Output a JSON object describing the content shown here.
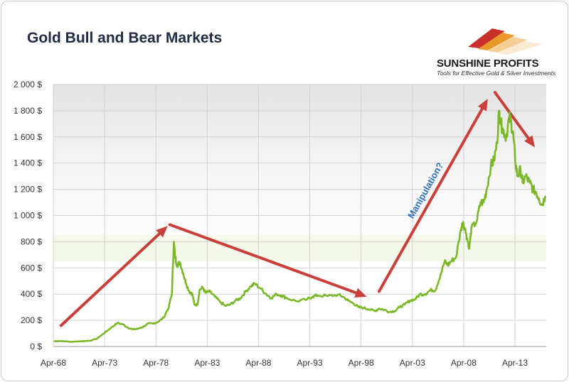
{
  "chart_data": {
    "type": "line",
    "title": "Gold Bull and Bear Markets",
    "xlabel": "",
    "ylabel": "",
    "x_ticks": [
      "Apr-68",
      "Apr-73",
      "Apr-78",
      "Apr-83",
      "Apr-88",
      "Apr-93",
      "Apr-98",
      "Apr-03",
      "Apr-08",
      "Apr-13"
    ],
    "y_ticks": [
      "0 $",
      "200 $",
      "400 $",
      "600 $",
      "800 $",
      "1 000 $",
      "1 200 $",
      "1 400 $",
      "1 600 $",
      "1 800 $",
      "2 000 $"
    ],
    "ylim": [
      0,
      2000
    ],
    "xlim": [
      1968.25,
      2016.3
    ],
    "grid": true,
    "line_color": "#7ab828",
    "series": [
      {
        "x": [
          1968.3,
          1969.0,
          1970.0,
          1971.0,
          1971.8,
          1972.5,
          1973.0,
          1973.5,
          1974.0,
          1974.5,
          1975.0,
          1975.5,
          1976.0,
          1976.7,
          1977.0,
          1977.5,
          1978.0,
          1978.5,
          1979.0,
          1979.5,
          1979.8,
          1980.0,
          1980.1,
          1980.3,
          1980.6,
          1980.9,
          1981.2,
          1981.5,
          1981.8,
          1982.0,
          1982.3,
          1982.5,
          1982.8,
          1983.1,
          1983.5,
          1984.0,
          1984.5,
          1985.0,
          1985.5,
          1986.0,
          1986.5,
          1987.0,
          1987.5,
          1987.9,
          1988.5,
          1989.0,
          1989.5,
          1990.0,
          1990.5,
          1991.0,
          1992.0,
          1993.0,
          1993.5,
          1994.0,
          1995.0,
          1996.0,
          1996.5,
          1997.0,
          1997.5,
          1998.0,
          1998.5,
          1999.0,
          1999.6,
          2000.0,
          2000.5,
          2001.0,
          2001.5,
          2002.0,
          2002.5,
          2003.0,
          2003.5,
          2004.0,
          2004.5,
          2005.0,
          2005.5,
          2006.0,
          2006.4,
          2006.7,
          2007.0,
          2007.5,
          2008.0,
          2008.2,
          2008.5,
          2008.8,
          2009.0,
          2009.5,
          2009.9,
          2010.2,
          2010.5,
          2010.9,
          2011.2,
          2011.5,
          2011.7,
          2011.9,
          2012.1,
          2012.4,
          2012.7,
          2012.9,
          2013.1,
          2013.3,
          2013.5,
          2013.8,
          2014.0,
          2014.3,
          2014.7,
          2015.0,
          2015.3,
          2015.6,
          2015.9,
          2016.2
        ],
        "values": [
          40,
          42,
          36,
          40,
          44,
          60,
          90,
          120,
          150,
          180,
          170,
          145,
          130,
          140,
          150,
          175,
          175,
          190,
          220,
          300,
          400,
          800,
          700,
          620,
          640,
          560,
          480,
          420,
          400,
          320,
          320,
          430,
          450,
          410,
          420,
          380,
          340,
          310,
          320,
          350,
          370,
          420,
          460,
          480,
          440,
          400,
          370,
          400,
          390,
          370,
          345,
          360,
          380,
          390,
          385,
          395,
          380,
          350,
          330,
          300,
          295,
          285,
          270,
          290,
          280,
          265,
          270,
          300,
          320,
          350,
          360,
          400,
          400,
          430,
          430,
          550,
          650,
          620,
          650,
          680,
          900,
          950,
          860,
          750,
          900,
          950,
          1100,
          1100,
          1200,
          1380,
          1420,
          1550,
          1800,
          1700,
          1650,
          1600,
          1750,
          1700,
          1600,
          1400,
          1300,
          1350,
          1250,
          1300,
          1250,
          1200,
          1180,
          1130,
          1080,
          1150
        ]
      }
    ],
    "annotations": [
      {
        "text": "Manipulation?"
      }
    ]
  },
  "brand": {
    "name": "SUNSHINE PROFITS",
    "tagline": "Tools for Effective Gold & Silver Investments"
  }
}
